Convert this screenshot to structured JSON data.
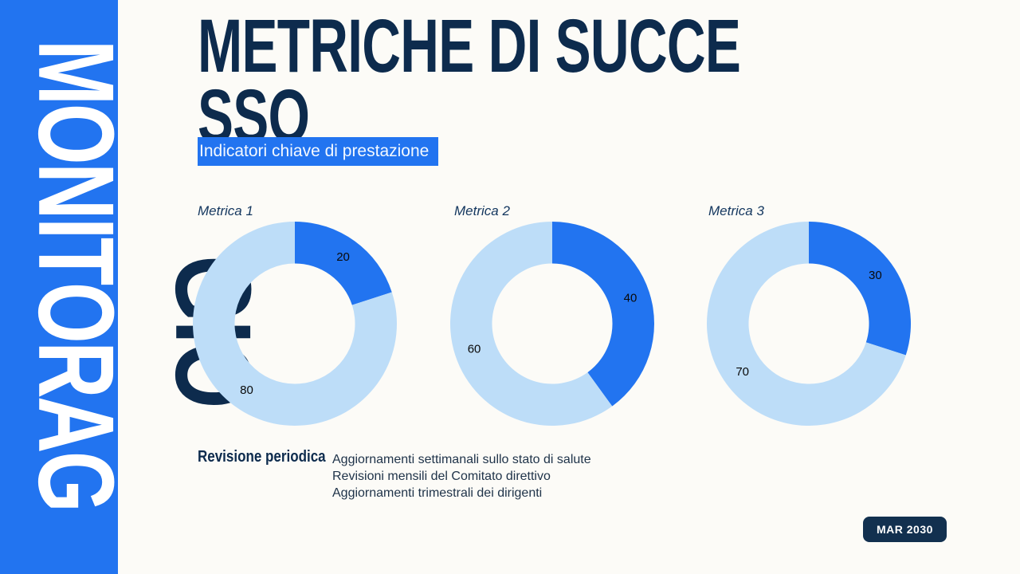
{
  "sidebar": {
    "vertical_text_primary": "MONITORAG",
    "vertical_text_secondary": "GIO"
  },
  "header": {
    "title_line1": "METRICHE DI SUCCE",
    "title_line2": "SSO",
    "subtitle": "Indicatori chiave di prestazione"
  },
  "chart_data": [
    {
      "type": "pie",
      "title": "Metrica 1",
      "labels": [
        "20",
        "80"
      ],
      "values": [
        20,
        80
      ],
      "colors": [
        "#2274F0",
        "#BDDDF8"
      ],
      "donut": true,
      "inner_radius_ratio": 0.59,
      "start_angle_deg": 0,
      "direction": "clockwise"
    },
    {
      "type": "pie",
      "title": "Metrica 2",
      "labels": [
        "40",
        "60"
      ],
      "values": [
        40,
        60
      ],
      "colors": [
        "#2274F0",
        "#BDDDF8"
      ],
      "donut": true,
      "inner_radius_ratio": 0.59,
      "start_angle_deg": 0,
      "direction": "clockwise"
    },
    {
      "type": "pie",
      "title": "Metrica 3",
      "labels": [
        "30",
        "70"
      ],
      "values": [
        30,
        70
      ],
      "colors": [
        "#2274F0",
        "#BDDDF8"
      ],
      "donut": true,
      "inner_radius_ratio": 0.59,
      "start_angle_deg": 0,
      "direction": "clockwise"
    }
  ],
  "review": {
    "heading": "Revisione periodica",
    "items": [
      "Aggiornamenti settimanali sullo stato di salute",
      "Revisioni mensili del Comitato direttivo",
      "Aggiornamenti trimestrali dei dirigenti"
    ]
  },
  "badge": {
    "label": "MAR 2030"
  },
  "colors": {
    "accent_blue": "#2274F0",
    "light_blue": "#BDDDF8",
    "navy": "#0D2B4D",
    "background": "#FCFBF7"
  }
}
